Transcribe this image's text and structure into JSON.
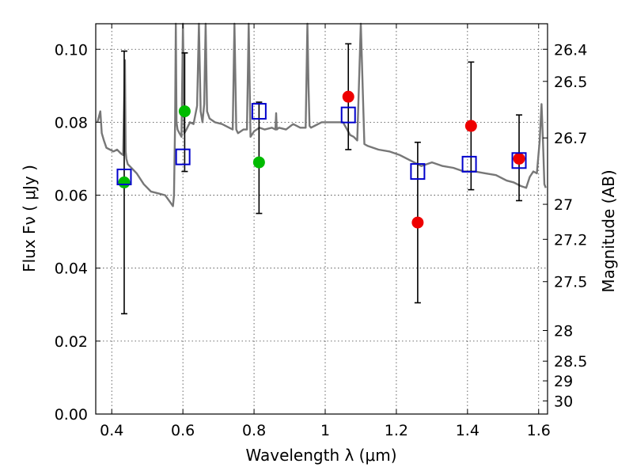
{
  "chart_data": {
    "type": "scatter",
    "xlabel": "Wavelength  λ (μm)",
    "ylabel": "Flux  Fν  ( μJy )",
    "ylabel_right": "Magnitude (AB)",
    "xlim": [
      0.355,
      1.625
    ],
    "ylim": [
      0.0,
      0.107
    ],
    "grid": true,
    "x_ticks": [
      0.4,
      0.6,
      0.8,
      1.0,
      1.2,
      1.4,
      1.6
    ],
    "x_tick_labels": [
      "0.4",
      "0.6",
      "0.8",
      "1",
      "1.2",
      "1.4",
      "1.6"
    ],
    "y_ticks": [
      0.0,
      0.02,
      0.04,
      0.06,
      0.08,
      0.1
    ],
    "y_tick_labels": [
      "0.00",
      "0.02",
      "0.04",
      "0.06",
      "0.08",
      "0.10"
    ],
    "right_ticks": [
      {
        "label": "26.4",
        "flux": 0.1
      },
      {
        "label": "26.5",
        "flux": 0.0912
      },
      {
        "label": "26.7",
        "flux": 0.0757
      },
      {
        "label": "27",
        "flux": 0.0575
      },
      {
        "label": "27.2",
        "flux": 0.0479
      },
      {
        "label": "27.5",
        "flux": 0.0363
      },
      {
        "label": "28",
        "flux": 0.0229
      },
      {
        "label": "28.5",
        "flux": 0.0145
      },
      {
        "label": "29",
        "flux": 0.0091
      },
      {
        "label": "30",
        "flux": 0.0036
      }
    ],
    "series": [
      {
        "name": "observed (green)",
        "color": "#00bb00",
        "points": [
          {
            "x": 0.435,
            "y": 0.0635,
            "yerr_low": 0.0275,
            "yerr_high": 0.0995
          },
          {
            "x": 0.605,
            "y": 0.083,
            "yerr_low": 0.0665,
            "yerr_high": 0.099
          },
          {
            "x": 0.814,
            "y": 0.069,
            "yerr_low": 0.055,
            "yerr_high": 0.0855
          }
        ]
      },
      {
        "name": "observed (red)",
        "color": "#ee0000",
        "points": [
          {
            "x": 1.065,
            "y": 0.087,
            "yerr_low": 0.0725,
            "yerr_high": 0.1015
          },
          {
            "x": 1.26,
            "y": 0.0525,
            "yerr_low": 0.0305,
            "yerr_high": 0.0745
          },
          {
            "x": 1.41,
            "y": 0.079,
            "yerr_low": 0.0615,
            "yerr_high": 0.0965
          },
          {
            "x": 1.545,
            "y": 0.07,
            "yerr_low": 0.0585,
            "yerr_high": 0.082
          }
        ]
      },
      {
        "name": "model photometry",
        "color": "#0000cc",
        "marker": "open-square",
        "points": [
          {
            "x": 0.435,
            "y": 0.065
          },
          {
            "x": 0.6,
            "y": 0.0705
          },
          {
            "x": 0.814,
            "y": 0.083
          },
          {
            "x": 1.065,
            "y": 0.082
          },
          {
            "x": 1.26,
            "y": 0.0665
          },
          {
            "x": 1.405,
            "y": 0.0685
          },
          {
            "x": 1.545,
            "y": 0.0695
          }
        ]
      },
      {
        "name": "template spectrum",
        "color": "#777777",
        "type": "line",
        "x": [
          0.36,
          0.368,
          0.372,
          0.378,
          0.385,
          0.395,
          0.405,
          0.415,
          0.425,
          0.432,
          0.437,
          0.439,
          0.441,
          0.445,
          0.455,
          0.47,
          0.49,
          0.51,
          0.53,
          0.55,
          0.565,
          0.572,
          0.575,
          0.578,
          0.58,
          0.582,
          0.585,
          0.59,
          0.596,
          0.6,
          0.604,
          0.61,
          0.62,
          0.63,
          0.64,
          0.645,
          0.65,
          0.655,
          0.66,
          0.664,
          0.668,
          0.675,
          0.69,
          0.71,
          0.73,
          0.74,
          0.745,
          0.75,
          0.755,
          0.77,
          0.78,
          0.785,
          0.79,
          0.8,
          0.815,
          0.83,
          0.85,
          0.86,
          0.862,
          0.864,
          0.87,
          0.89,
          0.91,
          0.93,
          0.945,
          0.95,
          0.953,
          0.956,
          0.96,
          0.97,
          0.99,
          1.02,
          1.05,
          1.07,
          1.08,
          1.09,
          1.1,
          1.11,
          1.12,
          1.15,
          1.18,
          1.21,
          1.24,
          1.27,
          1.3,
          1.33,
          1.36,
          1.39,
          1.42,
          1.45,
          1.48,
          1.51,
          1.53,
          1.55,
          1.565,
          1.575,
          1.585,
          1.595,
          1.603,
          1.608,
          1.612,
          1.616,
          1.62
        ],
        "y": [
          0.08,
          0.083,
          0.077,
          0.075,
          0.073,
          0.0725,
          0.072,
          0.0725,
          0.0715,
          0.071,
          0.097,
          0.072,
          0.07,
          0.0685,
          0.0675,
          0.066,
          0.063,
          0.061,
          0.0605,
          0.06,
          0.058,
          0.057,
          0.06,
          0.08,
          0.107,
          0.08,
          0.078,
          0.077,
          0.076,
          0.107,
          0.077,
          0.078,
          0.08,
          0.0795,
          0.0845,
          0.107,
          0.083,
          0.08,
          0.085,
          0.107,
          0.083,
          0.081,
          0.08,
          0.0795,
          0.0785,
          0.078,
          0.107,
          0.078,
          0.077,
          0.078,
          0.078,
          0.107,
          0.076,
          0.0775,
          0.0785,
          0.078,
          0.0785,
          0.078,
          0.0825,
          0.078,
          0.0785,
          0.078,
          0.0795,
          0.0785,
          0.0785,
          0.107,
          0.09,
          0.079,
          0.0785,
          0.079,
          0.08,
          0.08,
          0.08,
          0.0765,
          0.076,
          0.075,
          0.107,
          0.074,
          0.0735,
          0.0725,
          0.072,
          0.071,
          0.0695,
          0.068,
          0.069,
          0.068,
          0.0675,
          0.0665,
          0.0665,
          0.066,
          0.0655,
          0.064,
          0.0635,
          0.0625,
          0.062,
          0.065,
          0.0665,
          0.066,
          0.075,
          0.085,
          0.075,
          0.063,
          0.062
        ]
      }
    ]
  }
}
